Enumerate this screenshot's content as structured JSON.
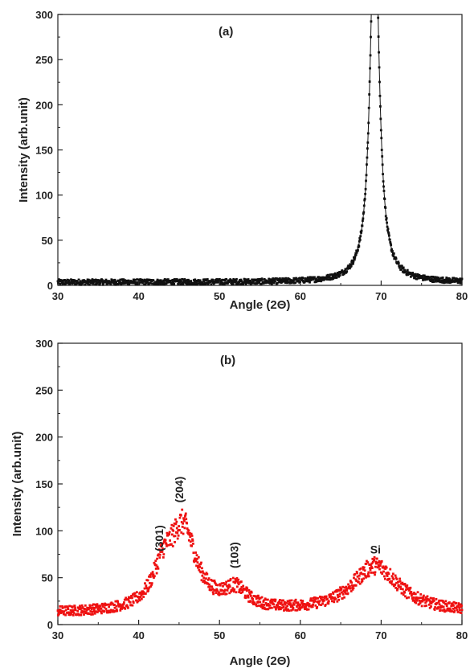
{
  "chart_data": [
    {
      "type": "scatter",
      "panel_label": "(a)",
      "xlabel": "Angle (2Θ)",
      "ylabel": "Intensity (arb.unit)",
      "xlim": [
        30,
        80
      ],
      "ylim": [
        0,
        300
      ],
      "xticks": [
        30,
        40,
        50,
        60,
        70,
        80
      ],
      "yticks": [
        0,
        50,
        100,
        150,
        200,
        250,
        300
      ],
      "color": "#111111",
      "grid": false,
      "series": [
        {
          "peaks": [
            {
              "center": 69.2,
              "height": 420,
              "width": 0.65
            }
          ],
          "baseline": 3.5
        }
      ]
    },
    {
      "type": "scatter",
      "panel_label": "(b)",
      "xlabel": "Angle (2Θ)",
      "ylabel": "Intensity (arb.unit)",
      "xlim": [
        30,
        80
      ],
      "ylim": [
        0,
        300
      ],
      "xticks": [
        30,
        40,
        50,
        60,
        70,
        80
      ],
      "yticks": [
        0,
        50,
        100,
        150,
        200,
        250,
        300
      ],
      "color": "#ee1111",
      "grid": false,
      "series": [
        {
          "peaks": [
            {
              "center": 45.5,
              "height": 85,
              "width": 2.0
            },
            {
              "center": 43.0,
              "height": 35,
              "width": 1.5
            },
            {
              "center": 52.0,
              "height": 20,
              "width": 1.8
            },
            {
              "center": 69.3,
              "height": 50,
              "width": 3.5
            }
          ],
          "baseline": 12
        }
      ],
      "annotations": [
        {
          "text": "(301)",
          "x": 43.0,
          "y": 78
        },
        {
          "text": "(204)",
          "x": 45.5,
          "y": 130
        },
        {
          "text": "(103)",
          "x": 52.3,
          "y": 60
        },
        {
          "text": "Si",
          "x": 69.3,
          "y": 76
        }
      ]
    }
  ]
}
